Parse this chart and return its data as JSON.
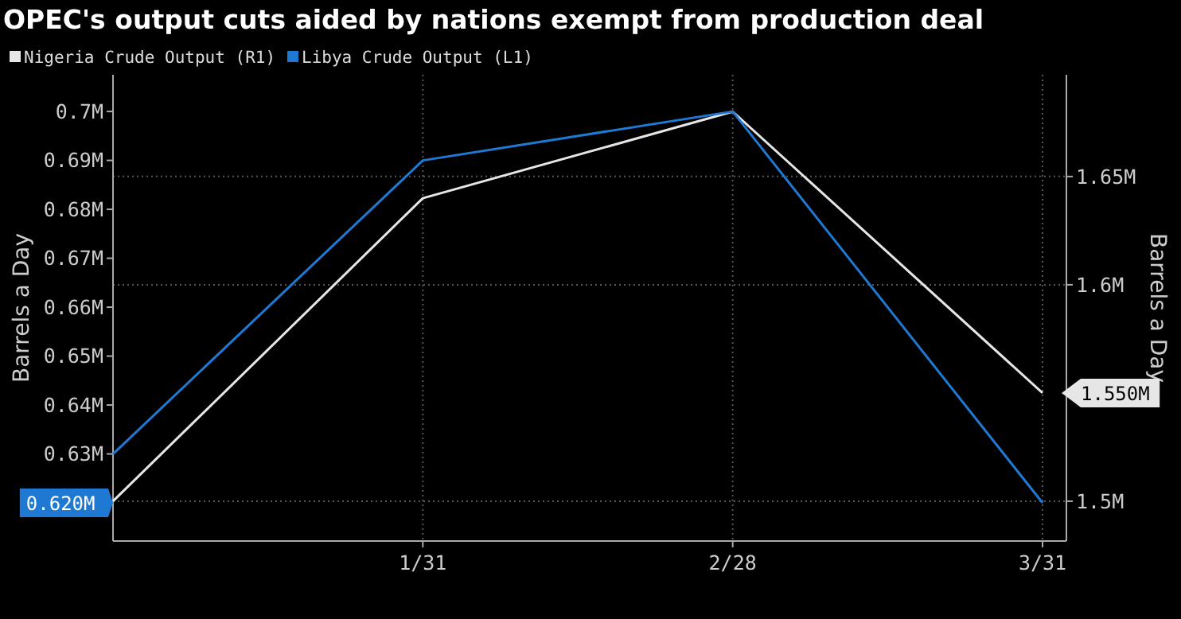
{
  "chart_data": {
    "type": "line",
    "title": "OPEC's output cuts aided by nations exempt from production deal",
    "categories": [
      null,
      "1/31",
      "2/28",
      "3/31"
    ],
    "series": [
      {
        "name": "Nigeria Crude Output (R1)",
        "color": "#e6e6e6",
        "axis": "y2",
        "values": [
          1.5,
          1.64,
          1.68,
          1.55
        ]
      },
      {
        "name": "Libya Crude Output (L1)",
        "color": "#1f78d1",
        "values": [
          0.63,
          0.69,
          0.7,
          0.62
        ]
      }
    ],
    "annotations": [
      "1.550M",
      "0.620M"
    ],
    "ylabel": "Barrels a Day",
    "y2label": "Barrels a Day",
    "ylim": [
      0.6122,
      0.7075
    ],
    "yticks": [
      {
        "value": 0.63,
        "label": "0.63M"
      },
      {
        "value": 0.64,
        "label": "0.64M"
      },
      {
        "value": 0.65,
        "label": "0.65M"
      },
      {
        "value": 0.66,
        "label": "0.66M"
      },
      {
        "value": 0.67,
        "label": "0.67M"
      },
      {
        "value": 0.68,
        "label": "0.68M"
      },
      {
        "value": 0.69,
        "label": "0.69M"
      },
      {
        "value": 0.7,
        "label": "0.7M"
      }
    ],
    "y2lim": [
      1.4816,
      1.697
    ],
    "y2ticks": [
      {
        "value": 1.5,
        "label": "1.5M"
      },
      {
        "value": 1.6,
        "label": "1.6M"
      },
      {
        "value": 1.65,
        "label": "1.65M"
      }
    ],
    "grid": true,
    "legend": "top left",
    "marker": "none",
    "line_style": "solid"
  }
}
